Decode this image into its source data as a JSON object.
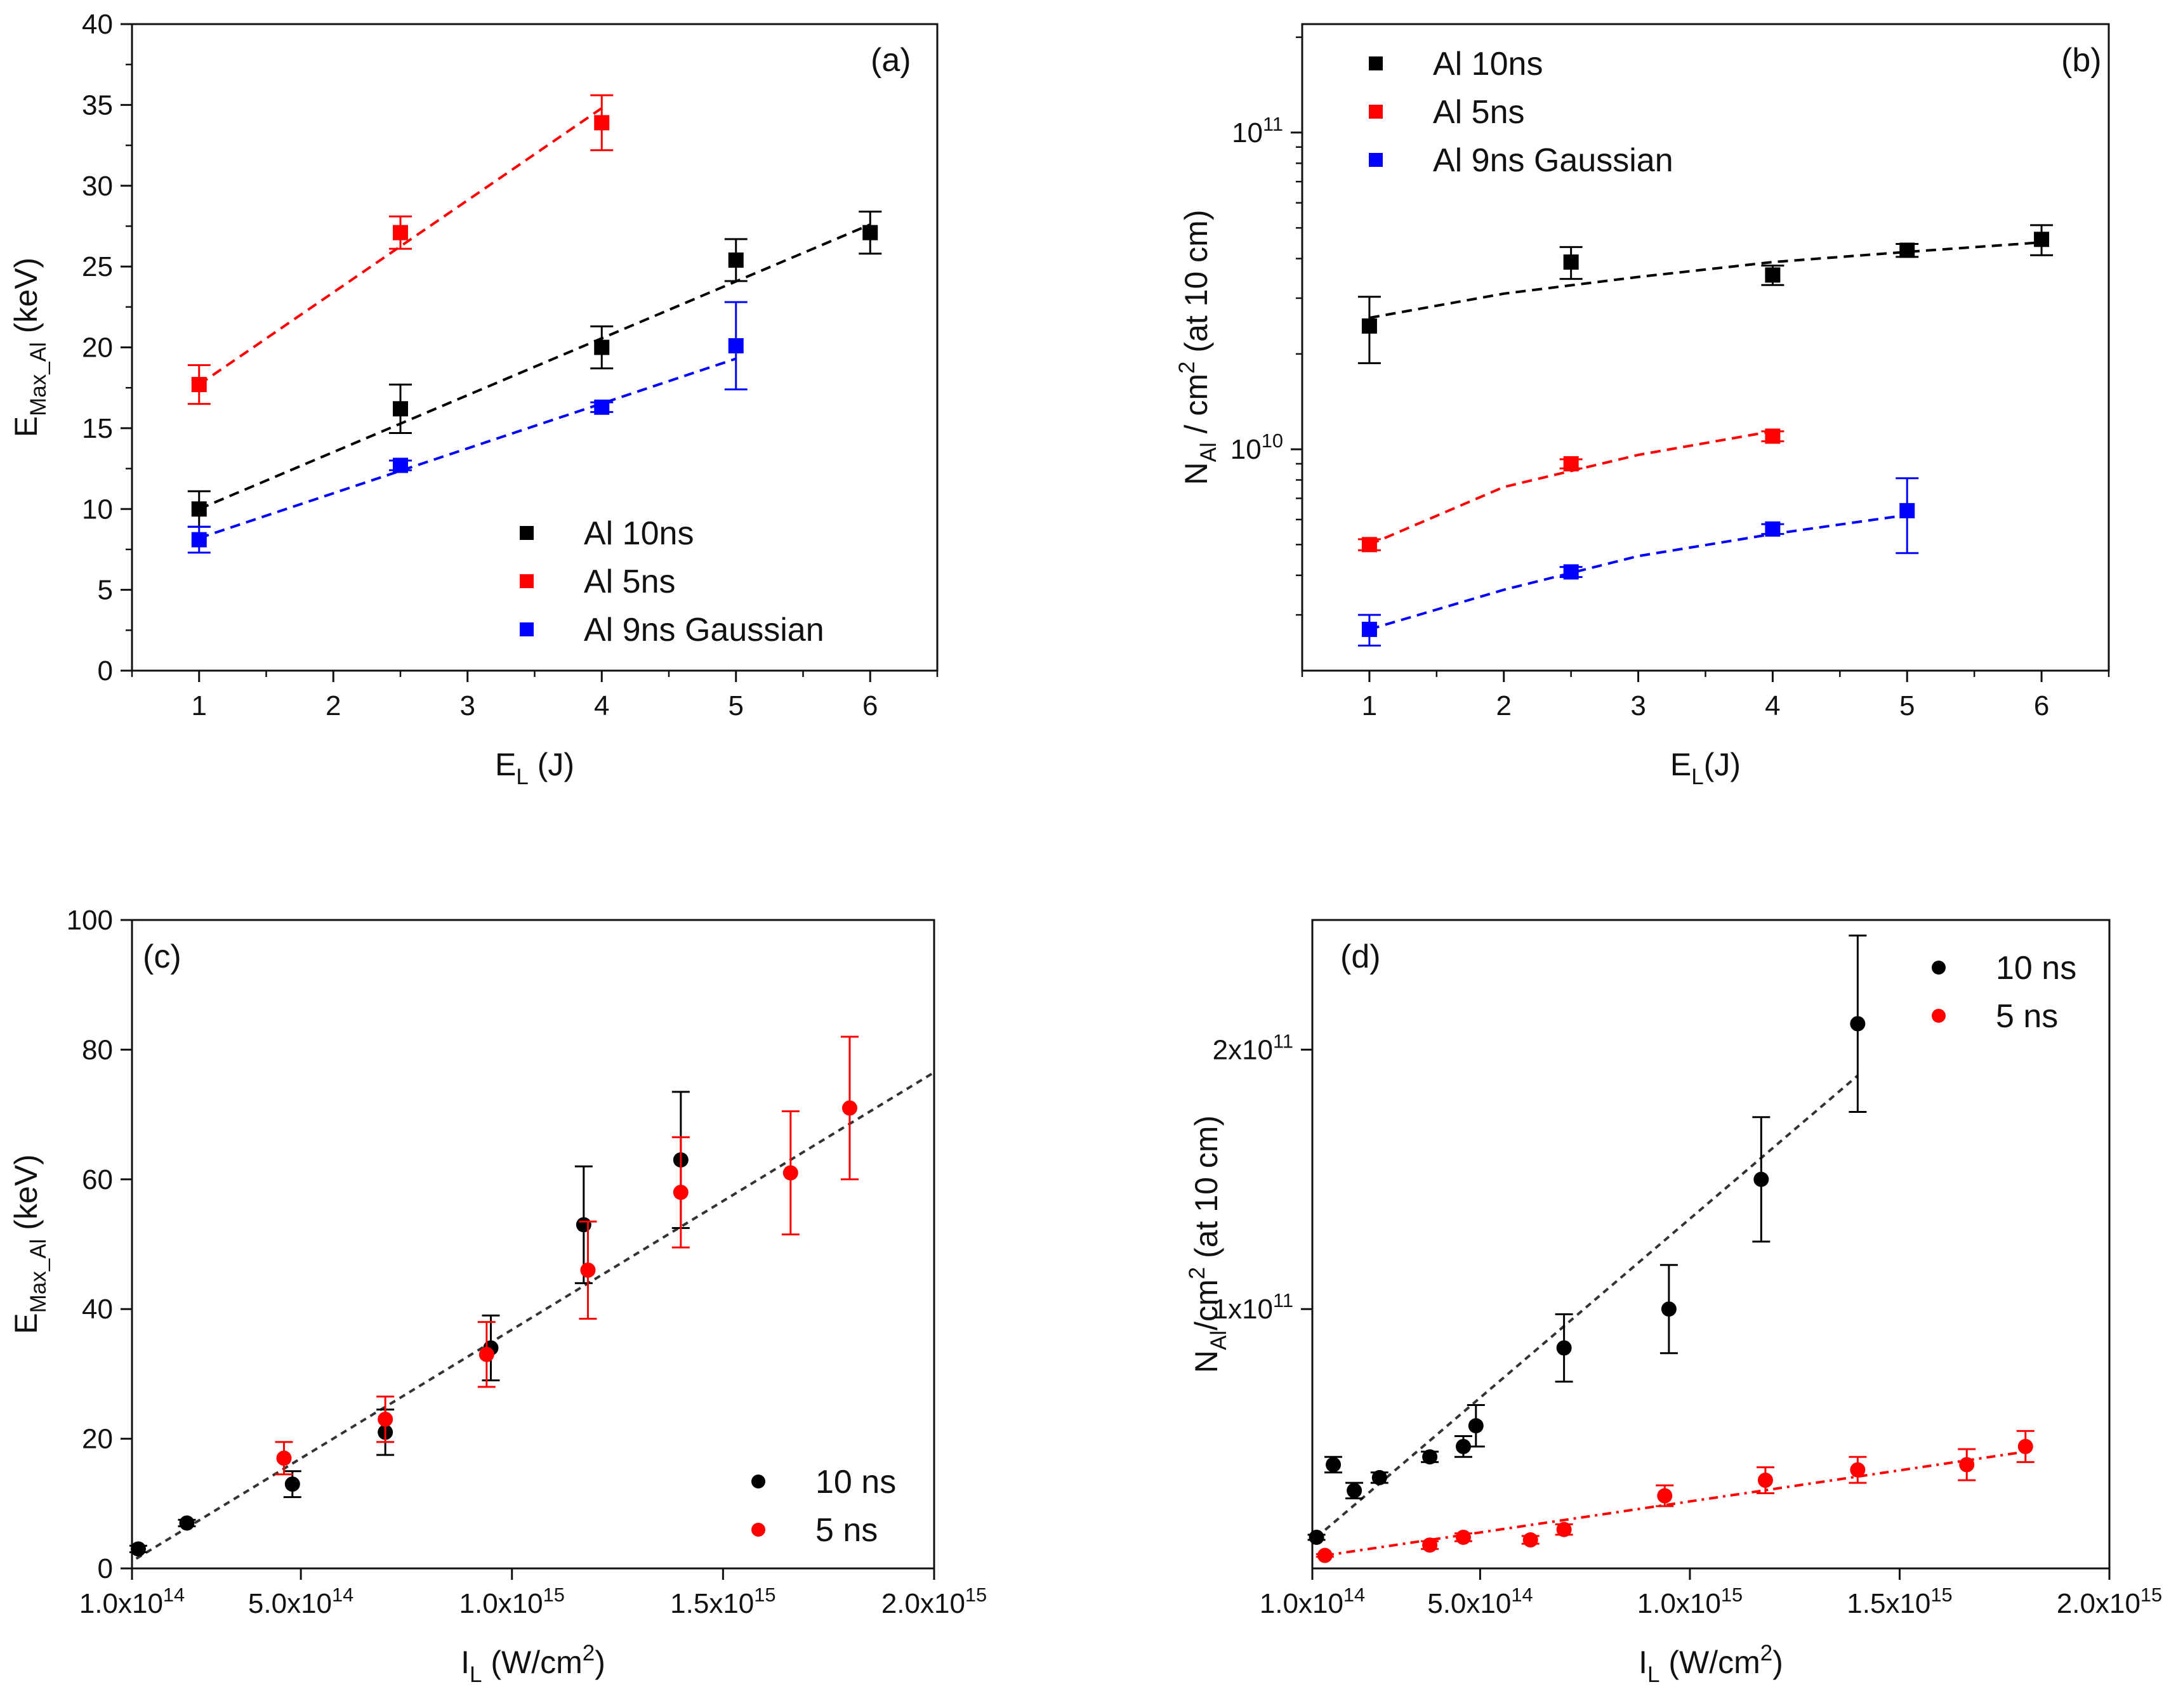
{
  "chart_data": [
    {
      "panel": "(a)",
      "type": "scatter",
      "xscale": "linear",
      "yscale": "linear",
      "xlim": [
        0.5,
        6.5
      ],
      "ylim": [
        0,
        40
      ],
      "xticks": [
        1,
        2,
        3,
        4,
        5,
        6
      ],
      "xtick_labels": [
        "1",
        "2",
        "3",
        "4",
        "5",
        "6"
      ],
      "yticks": [
        0,
        5,
        10,
        15,
        20,
        25,
        30,
        35,
        40
      ],
      "ytick_labels": [
        "0",
        "5",
        "10",
        "15",
        "20",
        "25",
        "30",
        "35",
        "40"
      ],
      "xlabel": "E",
      "xlabel_sub": "L",
      "xlabel_rest": " (J)",
      "ylabel": "E",
      "ylabel_sub": "Max_Al",
      "ylabel_rest": " (keV)",
      "legend_position": "bottom-right",
      "series": [
        {
          "name": "Al 10ns",
          "color": "#000000",
          "marker": "square",
          "x": [
            1,
            2.5,
            4,
            5,
            6
          ],
          "y": [
            10,
            16.2,
            20,
            25.4,
            27.1
          ],
          "err": [
            1.1,
            1.5,
            1.3,
            1.3,
            1.3
          ],
          "fit": {
            "kind": "linear",
            "x": [
              1,
              6
            ],
            "y": [
              10,
              27.6
            ]
          }
        },
        {
          "name": "Al 5ns",
          "color": "#ff0000",
          "marker": "square",
          "x": [
            1,
            2.5,
            4
          ],
          "y": [
            17.7,
            27.1,
            33.9
          ],
          "err": [
            1.2,
            1.0,
            1.7
          ],
          "fit": {
            "kind": "linear",
            "x": [
              1,
              4
            ],
            "y": [
              17.7,
              34.8
            ]
          }
        },
        {
          "name": "Al 9ns Gaussian",
          "color": "#0000ff",
          "marker": "square",
          "x": [
            1,
            2.5,
            4,
            5
          ],
          "y": [
            8.1,
            12.7,
            16.3,
            20.1
          ],
          "err": [
            0.8,
            0.3,
            0.3,
            2.7
          ],
          "fit": {
            "kind": "linear",
            "x": [
              1,
              5
            ],
            "y": [
              8.2,
              19.3
            ]
          }
        }
      ]
    },
    {
      "panel": "(b)",
      "type": "scatter",
      "xscale": "linear",
      "yscale": "log",
      "xlim": [
        0.5,
        6.5
      ],
      "ylim": [
        2000000000.0,
        220000000000.0
      ],
      "xticks": [
        1,
        2,
        3,
        4,
        5,
        6
      ],
      "xtick_labels": [
        "1",
        "2",
        "3",
        "4",
        "5",
        "6"
      ],
      "yticks": [
        10000000000.0,
        100000000000.0
      ],
      "ytick_labels": [
        {
          "base": "10",
          "exp": "10"
        },
        {
          "base": "10",
          "exp": "11"
        }
      ],
      "xlabel": "E",
      "xlabel_sub": "L",
      "xlabel_rest": "(J)",
      "ylabel": "N",
      "ylabel_sub": "Al",
      "ylabel_mid": " / cm",
      "ylabel_sup": "2",
      "ylabel_rest": " (at 10 cm)",
      "legend_position": "top-left",
      "series": [
        {
          "name": "Al 10ns",
          "color": "#000000",
          "marker": "square",
          "x": [
            1,
            2.5,
            4,
            5,
            6
          ],
          "y": [
            24500000000.0,
            39000000000.0,
            35500000000.0,
            42500000000.0,
            46000000000.0
          ],
          "err": [
            5800000000.0,
            4500000000.0,
            2500000000.0,
            2000000000.0,
            5000000000.0
          ],
          "fit": {
            "kind": "log-curve",
            "x": [
              1,
              2,
              3,
              4,
              5,
              6
            ],
            "y": [
              26000000000.0,
              31000000000.0,
              35000000000.0,
              39000000000.0,
              42000000000.0,
              45000000000.0
            ]
          }
        },
        {
          "name": "Al 5ns",
          "color": "#ff0000",
          "marker": "square",
          "x": [
            1,
            2.5,
            4
          ],
          "y": [
            5000000000.0,
            9000000000.0,
            11000000000.0
          ],
          "err": [
            200000000.0,
            300000000.0,
            400000000.0
          ],
          "fit": {
            "kind": "log-curve",
            "x": [
              1,
              2,
              3,
              4
            ],
            "y": [
              5000000000.0,
              7600000000.0,
              9600000000.0,
              11400000000.0
            ]
          }
        },
        {
          "name": "Al 9ns Gaussian",
          "color": "#0000ff",
          "marker": "square",
          "x": [
            1,
            2.5,
            4,
            5
          ],
          "y": [
            2700000000.0,
            4100000000.0,
            5600000000.0,
            6400000000.0
          ],
          "err": [
            300000000.0,
            150000000.0,
            200000000.0,
            1700000000.0
          ],
          "fit": {
            "kind": "log-curve",
            "x": [
              1,
              2,
              3,
              4,
              5
            ],
            "y": [
              2700000000.0,
              3600000000.0,
              4600000000.0,
              5400000000.0,
              6200000000.0
            ]
          }
        }
      ]
    },
    {
      "panel": "(c)",
      "type": "scatter",
      "xscale": "linear",
      "yscale": "linear",
      "xlim": [
        100000000000000.0,
        2000000000000000.0
      ],
      "ylim": [
        0,
        100
      ],
      "xticks": [
        100000000000000.0,
        500000000000000.0,
        1000000000000000.0,
        1500000000000000.0,
        2000000000000000.0
      ],
      "xtick_labels": [
        {
          "base": "1.0x10",
          "exp": "14"
        },
        {
          "base": "5.0x10",
          "exp": "14"
        },
        {
          "base": "1.0x10",
          "exp": "15"
        },
        {
          "base": "1.5x10",
          "exp": "15"
        },
        {
          "base": "2.0x10",
          "exp": "15"
        }
      ],
      "yticks": [
        0,
        20,
        40,
        60,
        80,
        100
      ],
      "ytick_labels": [
        "0",
        "20",
        "40",
        "60",
        "80",
        "100"
      ],
      "xlabel": "I",
      "xlabel_sub": "L",
      "xlabel_mid": " (W/cm",
      "xlabel_sup": "2",
      "xlabel_rest": ")",
      "ylabel": "E",
      "ylabel_sub": "Max_Al",
      "ylabel_rest": " (keV)",
      "legend_position": "bottom-right",
      "series": [
        {
          "name": "10 ns",
          "color": "#000000",
          "marker": "circle",
          "x": [
            115000000000000.0,
            230000000000000.0,
            480000000000000.0,
            700000000000000.0,
            950000000000000.0,
            1170000000000000.0,
            1400000000000000.0
          ],
          "y": [
            3,
            7,
            13,
            21,
            34,
            53,
            63
          ],
          "err": [
            0.5,
            0.5,
            2.0,
            3.5,
            5.0,
            9.0,
            10.5
          ]
        },
        {
          "name": "5 ns",
          "color": "#ff0000",
          "marker": "circle",
          "x": [
            460000000000000.0,
            700000000000000.0,
            940000000000000.0,
            1180000000000000.0,
            1400000000000000.0,
            1660000000000000.0,
            1800000000000000.0
          ],
          "y": [
            17,
            23,
            33,
            46,
            58,
            61,
            71
          ],
          "err": [
            2.5,
            3.5,
            5.0,
            7.5,
            8.5,
            9.5,
            11.0
          ]
        }
      ],
      "fits": [
        {
          "color": "#333333",
          "x": [
            110000000000000.0,
            2000000000000000.0
          ],
          "y": [
            1.5,
            76.5
          ]
        }
      ]
    },
    {
      "panel": "(d)",
      "type": "scatter",
      "xscale": "linear",
      "yscale": "linear",
      "xlim": [
        100000000000000.0,
        2000000000000000.0
      ],
      "ylim": [
        0,
        250000000000.0
      ],
      "xticks": [
        100000000000000.0,
        500000000000000.0,
        1000000000000000.0,
        1500000000000000.0,
        2000000000000000.0
      ],
      "xtick_labels": [
        {
          "base": "1.0x10",
          "exp": "14"
        },
        {
          "base": "5.0x10",
          "exp": "14"
        },
        {
          "base": "1.0x10",
          "exp": "15"
        },
        {
          "base": "1.5x10",
          "exp": "15"
        },
        {
          "base": "2.0x10",
          "exp": "15"
        }
      ],
      "yticks": [
        100000000000.0,
        200000000000.0
      ],
      "ytick_labels": [
        {
          "base": "1x10",
          "exp": "11"
        },
        {
          "base": "2x10",
          "exp": "11"
        }
      ],
      "xlabel": "I",
      "xlabel_sub": "L",
      "xlabel_mid": " (W/cm",
      "xlabel_sup": "2",
      "xlabel_rest": ")",
      "ylabel": "N",
      "ylabel_sub": "Al",
      "ylabel_mid": "/cm",
      "ylabel_sup": "2",
      "ylabel_rest": " (at 10 cm)",
      "legend_position": "top-right",
      "series": [
        {
          "name": "10 ns",
          "color": "#000000",
          "marker": "circle",
          "x": [
            110000000000000.0,
            150000000000000.0,
            200000000000000.0,
            260000000000000.0,
            380000000000000.0,
            460000000000000.0,
            490000000000000.0,
            700000000000000.0,
            950000000000000.0,
            1170000000000000.0,
            1400000000000000.0
          ],
          "y": [
            12000000000.0,
            40000000000.0,
            30000000000.0,
            35000000000.0,
            43000000000.0,
            47000000000.0,
            55000000000.0,
            85000000000.0,
            100000000000.0,
            150000000000.0,
            210000000000.0
          ],
          "err": [
            1000000000.0,
            3000000000.0,
            3000000000.0,
            2000000000.0,
            2000000000.0,
            4000000000.0,
            8000000000.0,
            13000000000.0,
            17000000000.0,
            24000000000.0,
            34000000000.0
          ]
        },
        {
          "name": "5 ns",
          "color": "#ff0000",
          "marker": "circle",
          "x": [
            130000000000000.0,
            380000000000000.0,
            460000000000000.0,
            620000000000000.0,
            700000000000000.0,
            940000000000000.0,
            1180000000000000.0,
            1400000000000000.0,
            1660000000000000.0,
            1800000000000000.0
          ],
          "y": [
            5000000000.0,
            9000000000.0,
            12000000000.0,
            11000000000.0,
            15000000000.0,
            28000000000.0,
            34000000000.0,
            38000000000.0,
            40000000000.0,
            47000000000.0
          ],
          "err": [
            500000000.0,
            1500000000.0,
            1500000000.0,
            1500000000.0,
            2000000000.0,
            4000000000.0,
            5000000000.0,
            5000000000.0,
            6000000000.0,
            6000000000.0
          ]
        }
      ],
      "fits": [
        {
          "color": "#333333",
          "x": [
            110000000000000.0,
            1400000000000000.0
          ],
          "y": [
            12000000000.0,
            190000000000.0
          ]
        },
        {
          "color": "#ff0000",
          "x": [
            130000000000000.0,
            1800000000000000.0
          ],
          "y": [
            5000000000.0,
            45000000000.0
          ]
        }
      ]
    }
  ]
}
